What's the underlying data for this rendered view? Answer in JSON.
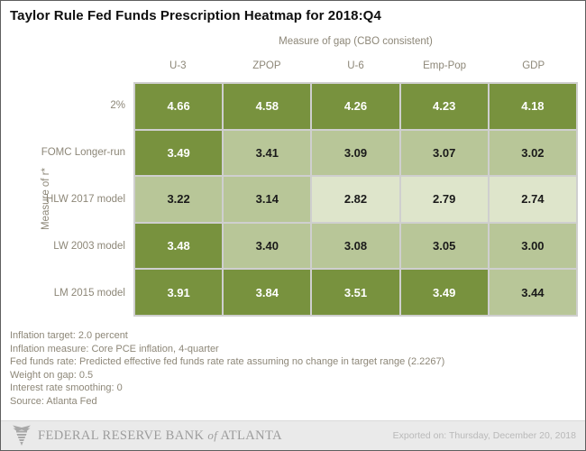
{
  "title": "Taylor Rule Fed Funds Prescription Heatmap for 2018:Q4",
  "chart_data": {
    "type": "heatmap",
    "title": "Taylor Rule Fed Funds Prescription Heatmap for 2018:Q4",
    "column_axis_label": "Measure of gap (CBO consistent)",
    "row_axis_label": "Measure of r*",
    "columns": [
      "U-3",
      "ZPOP",
      "U-6",
      "Emp-Pop",
      "GDP"
    ],
    "rows": [
      "2%",
      "FOMC Longer-run",
      "HLW 2017 model",
      "LW 2003 model",
      "LM 2015 model"
    ],
    "values": [
      [
        "4.66",
        "4.58",
        "4.26",
        "4.23",
        "4.18"
      ],
      [
        "3.49",
        "3.41",
        "3.09",
        "3.07",
        "3.02"
      ],
      [
        "3.22",
        "3.14",
        "2.82",
        "2.79",
        "2.74"
      ],
      [
        "3.48",
        "3.40",
        "3.08",
        "3.05",
        "3.00"
      ],
      [
        "3.91",
        "3.84",
        "3.51",
        "3.49",
        "3.44"
      ]
    ],
    "cell_levels": [
      [
        "dark",
        "dark",
        "dark",
        "dark",
        "dark"
      ],
      [
        "dark",
        "medium",
        "medium",
        "medium",
        "medium"
      ],
      [
        "medium",
        "medium",
        "light",
        "light",
        "light"
      ],
      [
        "dark",
        "medium",
        "medium",
        "medium",
        "medium"
      ],
      [
        "dark",
        "dark",
        "dark",
        "dark",
        "medium"
      ]
    ],
    "palette": {
      "dark": "#78923e",
      "medium": "#b8c698",
      "light": "#dee5cb"
    },
    "text_on_dark": "#ffffff",
    "text_on_light": "#1a1a1a",
    "legend_position": "none",
    "grid": "off"
  },
  "footnotes": [
    "Inflation target: 2.0 percent",
    "Inflation measure: Core PCE inflation, 4-quarter",
    "Fed funds rate: Predicted effective fed funds rate rate assuming no change in target range (2.2267)",
    "Weight on gap: 0.5",
    "Interest rate smoothing: 0",
    "Source: Atlanta Fed"
  ],
  "footer": {
    "logo_icon": "atlanta-fed-eagle-icon",
    "logo_text_pre": "FEDERAL RESERVE BANK",
    "logo_text_of": "of",
    "logo_text_post": "ATLANTA",
    "exported_label": "Exported on: Thursday, December 20, 2018"
  }
}
